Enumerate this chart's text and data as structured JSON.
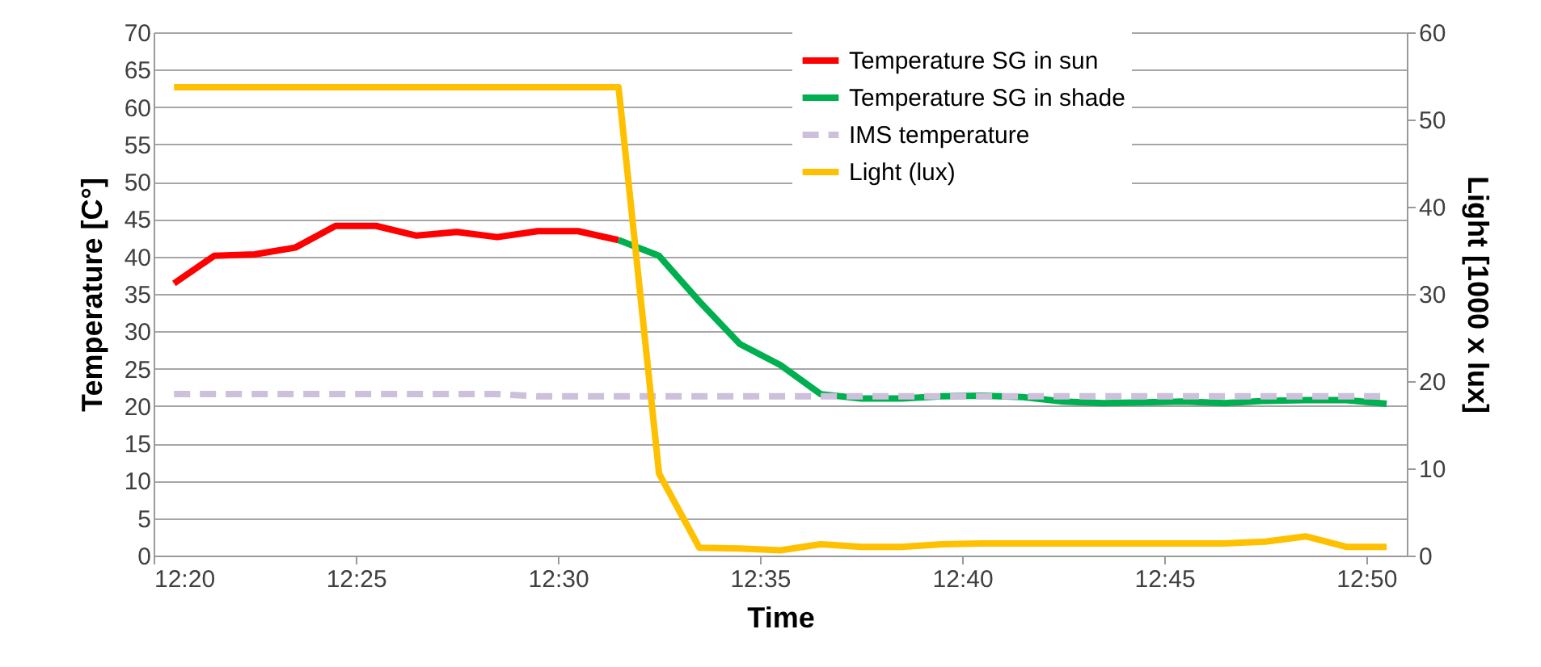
{
  "chart_data": {
    "type": "line",
    "xlabel": "Time",
    "ylabel": "Temperature [C°]",
    "y2label": "Light [1000 x lux]",
    "x": [
      12.3417,
      12.3583,
      12.375,
      12.3917,
      12.4083,
      12.425,
      12.4417,
      12.4583,
      12.475,
      12.4917,
      12.5083,
      12.525,
      12.5417,
      12.5583,
      12.575,
      12.5917,
      12.6083,
      12.625,
      12.6417,
      12.6583,
      12.675,
      12.6917,
      12.7083,
      12.725,
      12.7417,
      12.7583,
      12.775,
      12.7917,
      12.8083,
      12.825,
      12.8417
    ],
    "series": [
      {
        "name": "Temperature SG in sun",
        "color": "#ff0000",
        "values": [
          36.4,
          40.1,
          40.3,
          41.2,
          44.1,
          44.1,
          42.8,
          43.3,
          42.6,
          43.4,
          43.4,
          42.2,
          null,
          null,
          null,
          null,
          null,
          null,
          null,
          null,
          null,
          null,
          null,
          null,
          null,
          null,
          null,
          null,
          null,
          null,
          null
        ]
      },
      {
        "name": "Temperature SG in shade",
        "color": "#00b050",
        "values": [
          null,
          null,
          null,
          null,
          null,
          null,
          null,
          null,
          null,
          null,
          null,
          42.2,
          40.1,
          34.0,
          28.3,
          25.5,
          21.6,
          21.0,
          21.0,
          21.3,
          21.4,
          21.2,
          20.6,
          20.4,
          20.5,
          20.6,
          20.4,
          20.7,
          20.8,
          20.8,
          20.3
        ]
      },
      {
        "name": "IMS temperature",
        "color": "#ccc0da",
        "line_style": "dashed",
        "values": [
          21.6,
          21.6,
          21.6,
          21.6,
          21.6,
          21.6,
          21.6,
          21.6,
          21.6,
          21.3,
          21.3,
          21.3,
          21.3,
          21.3,
          21.3,
          21.3,
          21.3,
          21.3,
          21.3,
          21.3,
          21.3,
          21.3,
          21.3,
          21.3,
          21.3,
          21.3,
          21.3,
          21.3,
          21.3,
          21.3,
          21.3
        ]
      },
      {
        "name": "Light (lux)",
        "color": "#ffc000",
        "axis": "y2",
        "values": [
          53.7,
          53.7,
          53.7,
          53.7,
          53.7,
          53.7,
          53.7,
          53.7,
          53.7,
          53.7,
          53.7,
          53.7,
          9.4,
          0.9,
          0.8,
          0.6,
          1.3,
          1.0,
          1.0,
          1.3,
          1.4,
          1.4,
          1.4,
          1.4,
          1.4,
          1.4,
          1.4,
          1.6,
          2.2,
          1.0,
          1.0
        ]
      }
    ],
    "xlim": [
      12.3333,
      12.85
    ],
    "xticks": [
      {
        "value": 12.3333,
        "label": "12:20"
      },
      {
        "value": 12.4167,
        "label": "12:25"
      },
      {
        "value": 12.5,
        "label": "12:30"
      },
      {
        "value": 12.5833,
        "label": "12:35"
      },
      {
        "value": 12.6667,
        "label": "12:40"
      },
      {
        "value": 12.75,
        "label": "12:45"
      },
      {
        "value": 12.8333,
        "label": "12:50"
      }
    ],
    "ylim": [
      0,
      70
    ],
    "yticks": [
      0,
      5,
      10,
      15,
      20,
      25,
      30,
      35,
      40,
      45,
      50,
      55,
      60,
      65,
      70
    ],
    "y2lim": [
      0,
      60
    ],
    "y2ticks": [
      0,
      10,
      20,
      30,
      40,
      50,
      60
    ],
    "grid": "y",
    "legend": "top right"
  }
}
